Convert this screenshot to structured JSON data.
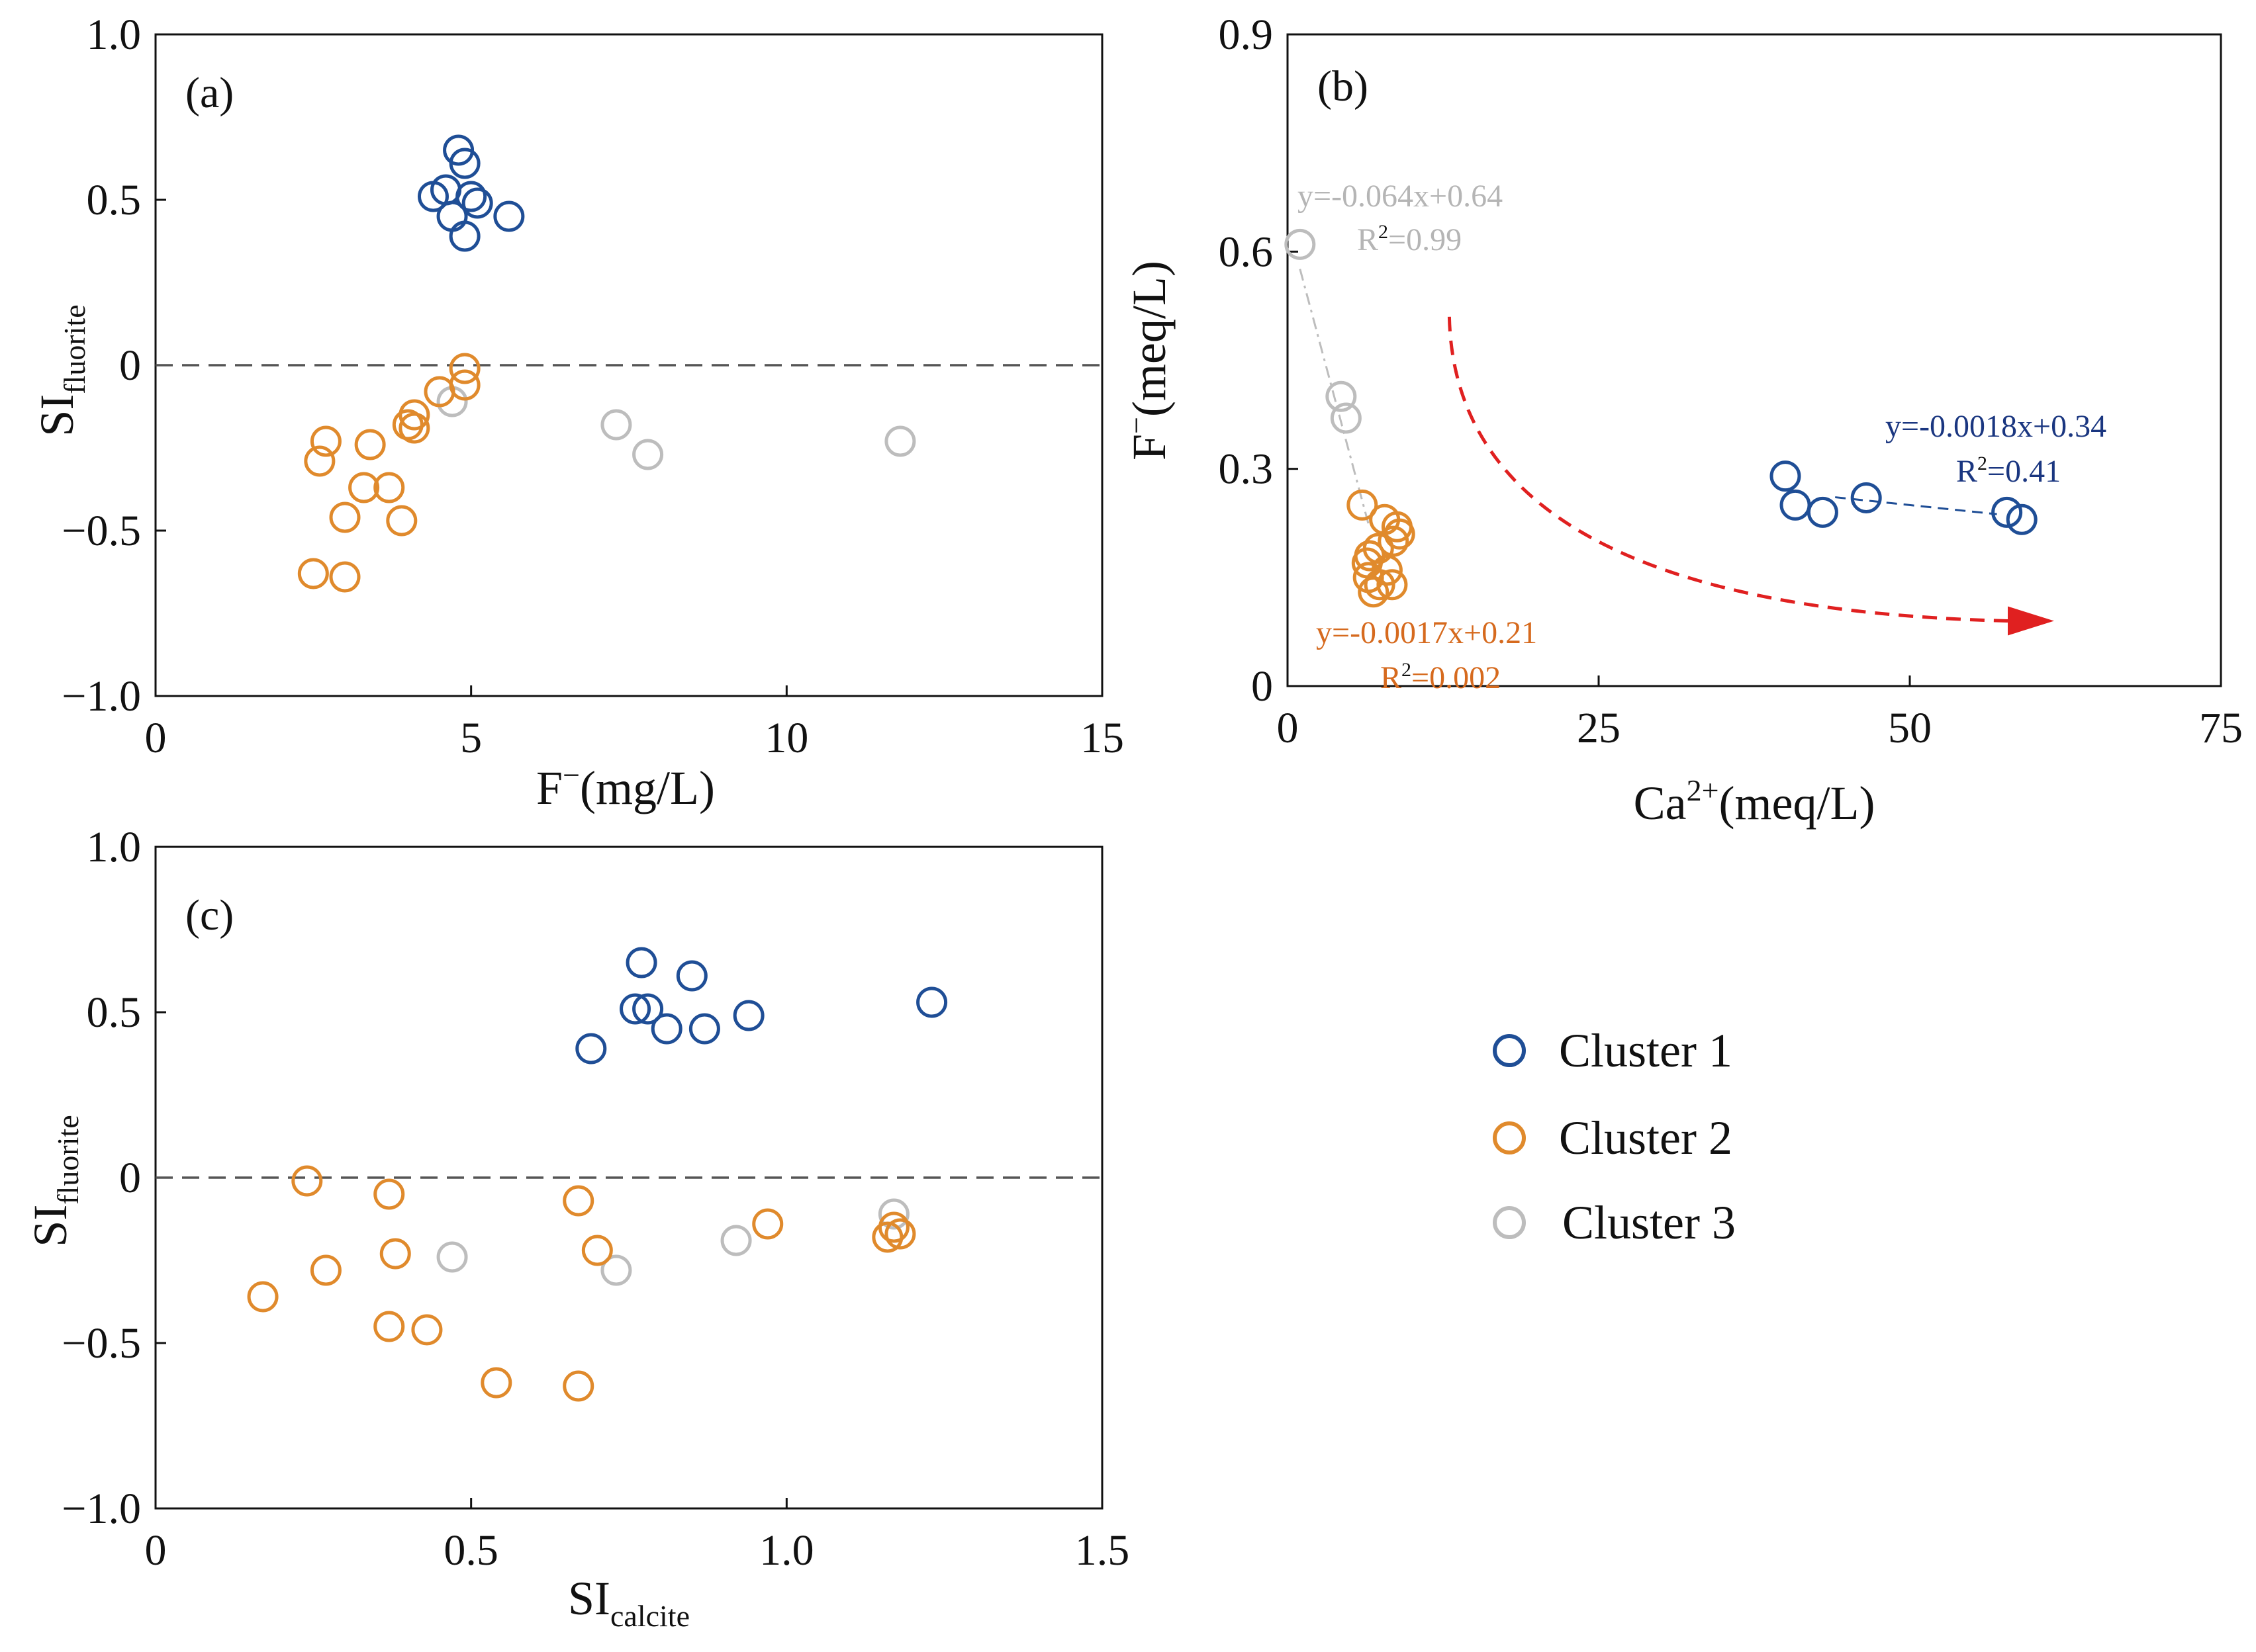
{
  "colors": {
    "cluster1": "#1f4e96",
    "cluster2": "#e08a2c",
    "cluster3": "#bdbdbd",
    "eq_cluster1": "#1a3680",
    "eq_cluster2": "#d66a1e",
    "eq_cluster3": "#b5b5b5",
    "arrow": "#e02020",
    "axis": "#111111",
    "zero_line": "#555555"
  },
  "legend": {
    "items": [
      {
        "label": "Cluster 1",
        "color_key": "cluster1"
      },
      {
        "label": "Cluster 2",
        "color_key": "cluster2"
      },
      {
        "label": "Cluster 3",
        "color_key": "cluster3"
      }
    ]
  },
  "chart_data": [
    {
      "panel": "(a)",
      "type": "scatter",
      "xlabel_main": "F",
      "xlabel_sup": "−",
      "xlabel_rest": "(mg/L)",
      "ylabel_main": "SI",
      "ylabel_sub": "fluorite",
      "xlim": [
        0,
        15
      ],
      "ylim": [
        -1.0,
        1.0
      ],
      "xticks": [
        0,
        5,
        10,
        15
      ],
      "xtick_labels": [
        "0",
        "5",
        "10",
        "15"
      ],
      "yticks": [
        1.0,
        0.5,
        0,
        -0.5,
        -1.0
      ],
      "ytick_labels": [
        "1.0",
        "0.5",
        "0",
        "−0.5",
        "−1.0"
      ],
      "zero_line": true,
      "series": [
        {
          "name": "Cluster 1",
          "color_key": "cluster1",
          "points": [
            [
              4.8,
              0.65
            ],
            [
              4.9,
              0.61
            ],
            [
              4.6,
              0.53
            ],
            [
              4.4,
              0.51
            ],
            [
              5.0,
              0.51
            ],
            [
              5.1,
              0.49
            ],
            [
              4.7,
              0.45
            ],
            [
              5.6,
              0.45
            ],
            [
              4.9,
              0.39
            ]
          ]
        },
        {
          "name": "Cluster 2",
          "color_key": "cluster2",
          "points": [
            [
              4.9,
              -0.01
            ],
            [
              4.9,
              -0.06
            ],
            [
              4.5,
              -0.08
            ],
            [
              4.1,
              -0.15
            ],
            [
              4.0,
              -0.18
            ],
            [
              4.1,
              -0.19
            ],
            [
              2.7,
              -0.23
            ],
            [
              3.4,
              -0.24
            ],
            [
              2.6,
              -0.29
            ],
            [
              3.3,
              -0.37
            ],
            [
              3.7,
              -0.37
            ],
            [
              3.0,
              -0.46
            ],
            [
              3.9,
              -0.47
            ],
            [
              2.5,
              -0.63
            ],
            [
              3.0,
              -0.64
            ]
          ]
        },
        {
          "name": "Cluster 3",
          "color_key": "cluster3",
          "points": [
            [
              4.7,
              -0.11
            ],
            [
              7.3,
              -0.18
            ],
            [
              7.8,
              -0.27
            ],
            [
              11.8,
              -0.23
            ]
          ]
        }
      ]
    },
    {
      "panel": "(b)",
      "type": "scatter",
      "xlabel_main": "Ca",
      "xlabel_sup": "2+",
      "xlabel_rest": "(meq/L)",
      "ylabel_main": "F",
      "ylabel_sup": "−",
      "ylabel_rest": "(meq/L)",
      "xlim": [
        0,
        75
      ],
      "ylim": [
        0,
        0.9
      ],
      "xticks": [
        0,
        25,
        50,
        75
      ],
      "xtick_labels": [
        "0",
        "25",
        "50",
        "75"
      ],
      "yticks": [
        0.9,
        0.6,
        0.3,
        0
      ],
      "ytick_labels": [
        "0.9",
        "0.6",
        "0.3",
        "0"
      ],
      "series": [
        {
          "name": "Cluster 1",
          "color_key": "cluster1",
          "points": [
            [
              40.0,
              0.29
            ],
            [
              46.5,
              0.26
            ],
            [
              40.8,
              0.25
            ],
            [
              43.0,
              0.24
            ],
            [
              57.8,
              0.24
            ],
            [
              59.0,
              0.23
            ]
          ]
        },
        {
          "name": "Cluster 2",
          "color_key": "cluster2",
          "points": [
            [
              6.0,
              0.25
            ],
            [
              7.8,
              0.23
            ],
            [
              8.8,
              0.22
            ],
            [
              9.0,
              0.21
            ],
            [
              8.5,
              0.2
            ],
            [
              7.3,
              0.19
            ],
            [
              6.6,
              0.18
            ],
            [
              6.4,
              0.17
            ],
            [
              8.0,
              0.16
            ],
            [
              6.5,
              0.15
            ],
            [
              8.4,
              0.14
            ],
            [
              7.4,
              0.14
            ],
            [
              6.9,
              0.13
            ]
          ]
        },
        {
          "name": "Cluster 3",
          "color_key": "cluster3",
          "points": [
            [
              1.0,
              0.61
            ],
            [
              4.3,
              0.4
            ],
            [
              4.7,
              0.37
            ]
          ]
        }
      ],
      "fits": [
        {
          "color_key": "cluster3",
          "x_range": [
            1.0,
            6.5
          ],
          "slope": -0.064,
          "intercept": 0.64,
          "equation": "y=-0.064x+0.64",
          "r2_label": "R",
          "r2_value": "=0.99"
        },
        {
          "color_key": "cluster1",
          "x_range": [
            44.0,
            57.0
          ],
          "slope": -0.0018,
          "intercept": 0.34,
          "equation": "y=-0.0018x+0.34",
          "r2_label": "R",
          "r2_value": "=0.41"
        },
        {
          "color_key": "cluster2",
          "x_range": null,
          "slope": -0.0017,
          "intercept": 0.21,
          "equation": "y=-0.0017x+0.21",
          "r2_label": "R",
          "r2_value": "=0.002"
        }
      ],
      "trend_arrow": {
        "from": [
          13,
          0.51
        ],
        "to": [
          60,
          0.09
        ],
        "style": "dashed curved arrow"
      }
    },
    {
      "panel": "(c)",
      "type": "scatter",
      "xlabel_main": "SI",
      "xlabel_sub": "calcite",
      "ylabel_main": "SI",
      "ylabel_sub": "fluorite",
      "xlim": [
        0,
        1.5
      ],
      "ylim": [
        -1.0,
        1.0
      ],
      "xticks": [
        0,
        0.5,
        1.0,
        1.5
      ],
      "xtick_labels": [
        "0",
        "0.5",
        "1.0",
        "1.5"
      ],
      "yticks": [
        1.0,
        0.5,
        0,
        -0.5,
        -1.0
      ],
      "ytick_labels": [
        "1.0",
        "0.5",
        "0",
        "−0.5",
        "−1.0"
      ],
      "zero_line": true,
      "series": [
        {
          "name": "Cluster 1",
          "color_key": "cluster1",
          "points": [
            [
              0.77,
              0.65
            ],
            [
              0.85,
              0.61
            ],
            [
              1.23,
              0.53
            ],
            [
              0.76,
              0.51
            ],
            [
              0.78,
              0.51
            ],
            [
              0.94,
              0.49
            ],
            [
              0.81,
              0.45
            ],
            [
              0.87,
              0.45
            ],
            [
              0.69,
              0.39
            ]
          ]
        },
        {
          "name": "Cluster 2",
          "color_key": "cluster2",
          "points": [
            [
              0.24,
              -0.01
            ],
            [
              0.37,
              -0.05
            ],
            [
              0.67,
              -0.07
            ],
            [
              0.97,
              -0.14
            ],
            [
              1.17,
              -0.15
            ],
            [
              1.16,
              -0.18
            ],
            [
              1.18,
              -0.17
            ],
            [
              0.7,
              -0.22
            ],
            [
              0.38,
              -0.23
            ],
            [
              0.27,
              -0.28
            ],
            [
              0.17,
              -0.36
            ],
            [
              0.37,
              -0.45
            ],
            [
              0.43,
              -0.46
            ],
            [
              0.54,
              -0.62
            ],
            [
              0.67,
              -0.63
            ]
          ]
        },
        {
          "name": "Cluster 3",
          "color_key": "cluster3",
          "points": [
            [
              1.17,
              -0.11
            ],
            [
              0.92,
              -0.19
            ],
            [
              0.47,
              -0.24
            ],
            [
              0.73,
              -0.28
            ]
          ]
        }
      ]
    }
  ]
}
